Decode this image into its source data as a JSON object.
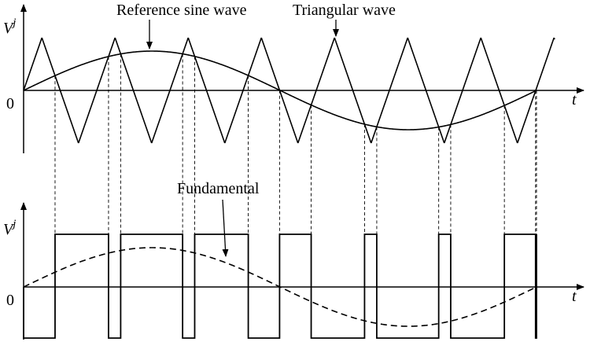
{
  "labels": {
    "reference": "Reference sine wave",
    "triangular": "Triangular wave",
    "fundamental": "Fundamental"
  },
  "top_axis": {
    "y_label": {
      "base": "V",
      "sup": "j"
    },
    "origin": "0",
    "x_label": "t"
  },
  "bottom_axis": {
    "y_label": {
      "base": "V",
      "sup": "j"
    },
    "origin": "0",
    "x_label": "t"
  }
}
